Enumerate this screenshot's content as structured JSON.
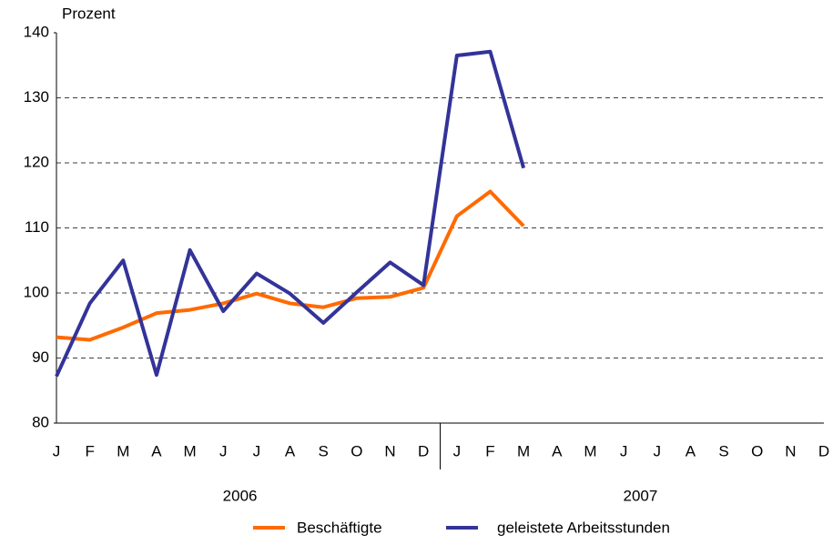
{
  "chart_data": {
    "type": "line",
    "y_label": "Prozent",
    "categories": [
      "J",
      "F",
      "M",
      "A",
      "M",
      "J",
      "J",
      "A",
      "S",
      "O",
      "N",
      "D",
      "J",
      "F",
      "M",
      "A",
      "M",
      "J",
      "J",
      "A",
      "S",
      "O",
      "N",
      "D"
    ],
    "years": [
      "2006",
      "2007"
    ],
    "series": [
      {
        "name": "Beschäftigte",
        "color": "#ff6a00",
        "values": [
          93.2,
          92.8,
          94.7,
          96.9,
          97.4,
          98.4,
          99.9,
          98.4,
          97.8,
          99.2,
          99.4,
          100.8,
          111.8,
          115.6,
          110.3,
          null,
          null,
          null,
          null,
          null,
          null,
          null,
          null,
          null
        ]
      },
      {
        "name": "geleistete Arbeitsstunden",
        "color": "#333399",
        "values": [
          87.2,
          98.4,
          105.0,
          87.4,
          106.6,
          97.2,
          103.0,
          99.9,
          95.4,
          100.1,
          104.7,
          101.2,
          136.5,
          137.1,
          119.2,
          null,
          null,
          null,
          null,
          null,
          null,
          null,
          null,
          null
        ]
      }
    ],
    "ylim": [
      80,
      140
    ],
    "yticks": [
      80,
      90,
      100,
      110,
      120,
      130,
      140
    ],
    "grid": true
  }
}
